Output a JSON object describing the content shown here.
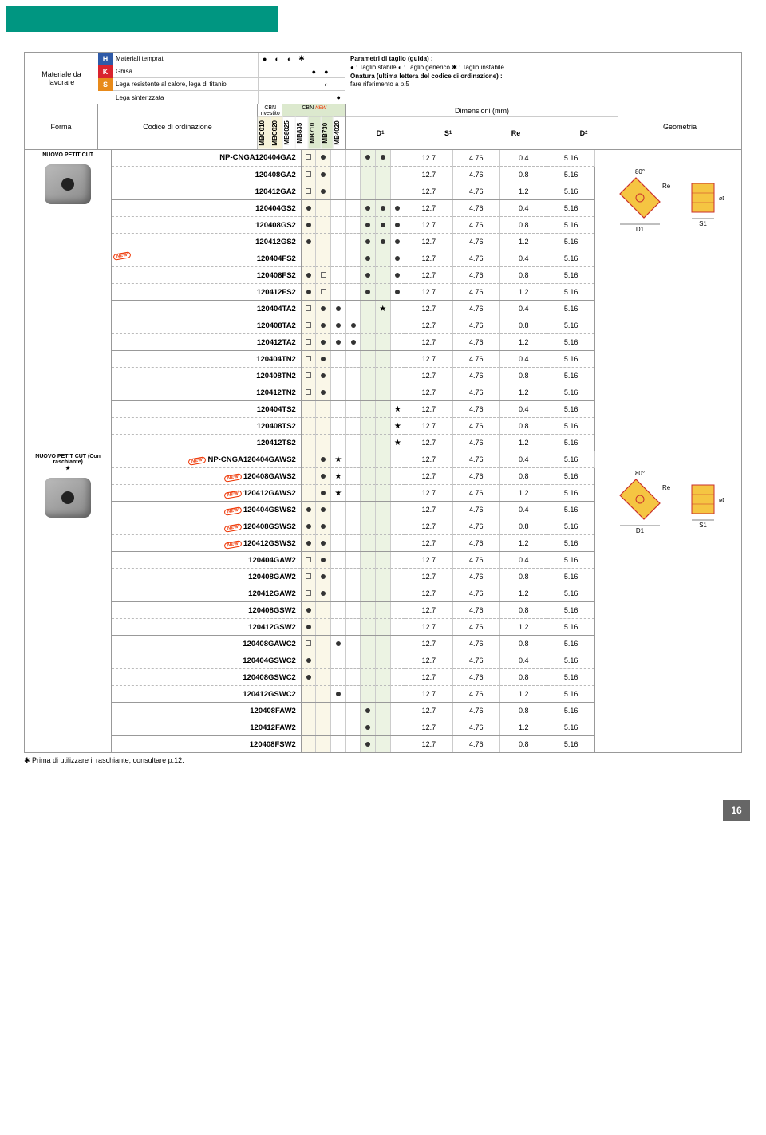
{
  "header": {
    "materiale_label": "Materiale da lavorare",
    "materials": [
      {
        "key": "H",
        "label": "Materiali temprati",
        "symbols": [
          "●",
          "◐",
          "◐",
          "✱",
          "",
          "",
          ""
        ]
      },
      {
        "key": "K",
        "label": "Ghisa",
        "symbols": [
          "",
          "",
          "",
          "",
          "●",
          "●",
          ""
        ]
      },
      {
        "key": "S",
        "label": "Lega resistente al calore, lega di titanio",
        "symbols": [
          "",
          "",
          "",
          "",
          "",
          "◐",
          ""
        ]
      },
      {
        "key": "",
        "label": "Lega sinterizzata",
        "symbols": [
          "",
          "",
          "",
          "",
          "",
          "",
          "●"
        ]
      }
    ],
    "legend_title": "Parametri di taglio (guida) :",
    "legend1": "● : Taglio stabile   ◐ : Taglio generico   ✱ : Taglio instabile",
    "legend2": "Onatura (ultima lettera del codice di ordinazione) :",
    "legend3": "fare riferimento a p.5",
    "cbn_riv": "CBN rivestito",
    "cbn": "CBN",
    "dim_hdr": "Dimensioni (mm)",
    "forma": "Forma",
    "codice": "Codice di ordinazione",
    "geometria": "Geometria",
    "grades": [
      "MBC010",
      "MBC020",
      "MB8025",
      "MB835",
      "MB710",
      "MB730",
      "MB4020"
    ],
    "grade_tint": [
      "tint1",
      "tint1",
      "",
      "",
      "tint2",
      "tint2",
      ""
    ],
    "dims": [
      "D1",
      "S1",
      "Re",
      "D2"
    ]
  },
  "sections": [
    {
      "forma": "NUOVO PETIT CUT",
      "has_image": true,
      "star": false,
      "rows": [
        {
          "code": "NP-CNGA120404GA2",
          "first": true,
          "g": [
            "□",
            "●",
            "",
            "",
            "●",
            "●",
            ""
          ],
          "d": [
            "12.7",
            "4.76",
            "0.4",
            "5.16"
          ]
        },
        {
          "code": "120408GA2",
          "g": [
            "□",
            "●",
            "",
            "",
            "",
            "",
            ""
          ],
          "d": [
            "12.7",
            "4.76",
            "0.8",
            "5.16"
          ]
        },
        {
          "code": "120412GA2",
          "solid": true,
          "g": [
            "□",
            "●",
            "",
            "",
            "",
            "",
            ""
          ],
          "d": [
            "12.7",
            "4.76",
            "1.2",
            "5.16"
          ]
        },
        {
          "code": "120404GS2",
          "g": [
            "●",
            "",
            "",
            "",
            "●",
            "●",
            "●"
          ],
          "d": [
            "12.7",
            "4.76",
            "0.4",
            "5.16"
          ]
        },
        {
          "code": "120408GS2",
          "g": [
            "●",
            "",
            "",
            "",
            "●",
            "●",
            "●"
          ],
          "d": [
            "12.7",
            "4.76",
            "0.8",
            "5.16"
          ]
        },
        {
          "code": "120412GS2",
          "solid": true,
          "g": [
            "●",
            "",
            "",
            "",
            "●",
            "●",
            "●"
          ],
          "d": [
            "12.7",
            "4.76",
            "1.2",
            "5.16"
          ]
        },
        {
          "code": "120404FS2",
          "row_new": true,
          "g": [
            "",
            "",
            "",
            "",
            "●",
            "",
            "●"
          ],
          "d": [
            "12.7",
            "4.76",
            "0.4",
            "5.16"
          ]
        },
        {
          "code": "120408FS2",
          "g": [
            "●",
            "□",
            "",
            "",
            "●",
            "",
            "●"
          ],
          "d": [
            "12.7",
            "4.76",
            "0.8",
            "5.16"
          ]
        },
        {
          "code": "120412FS2",
          "solid": true,
          "g": [
            "●",
            "□",
            "",
            "",
            "●",
            "",
            "●"
          ],
          "d": [
            "12.7",
            "4.76",
            "1.2",
            "5.16"
          ]
        },
        {
          "code": "120404TA2",
          "g": [
            "□",
            "●",
            "●",
            "",
            "",
            "★",
            ""
          ],
          "d": [
            "12.7",
            "4.76",
            "0.4",
            "5.16"
          ]
        },
        {
          "code": "120408TA2",
          "g": [
            "□",
            "●",
            "●",
            "●",
            "",
            "",
            ""
          ],
          "d": [
            "12.7",
            "4.76",
            "0.8",
            "5.16"
          ]
        },
        {
          "code": "120412TA2",
          "solid": true,
          "g": [
            "□",
            "●",
            "●",
            "●",
            "",
            "",
            ""
          ],
          "d": [
            "12.7",
            "4.76",
            "1.2",
            "5.16"
          ]
        },
        {
          "code": "120404TN2",
          "g": [
            "□",
            "●",
            "",
            "",
            "",
            "",
            ""
          ],
          "d": [
            "12.7",
            "4.76",
            "0.4",
            "5.16"
          ]
        },
        {
          "code": "120408TN2",
          "g": [
            "□",
            "●",
            "",
            "",
            "",
            "",
            ""
          ],
          "d": [
            "12.7",
            "4.76",
            "0.8",
            "5.16"
          ]
        },
        {
          "code": "120412TN2",
          "solid": true,
          "g": [
            "□",
            "●",
            "",
            "",
            "",
            "",
            ""
          ],
          "d": [
            "12.7",
            "4.76",
            "1.2",
            "5.16"
          ]
        },
        {
          "code": "120404TS2",
          "g": [
            "",
            "",
            "",
            "",
            "",
            "",
            "★"
          ],
          "d": [
            "12.7",
            "4.76",
            "0.4",
            "5.16"
          ]
        },
        {
          "code": "120408TS2",
          "g": [
            "",
            "",
            "",
            "",
            "",
            "",
            "★"
          ],
          "d": [
            "12.7",
            "4.76",
            "0.8",
            "5.16"
          ]
        },
        {
          "code": "120412TS2",
          "solid": true,
          "g": [
            "",
            "",
            "",
            "",
            "",
            "",
            "★"
          ],
          "d": [
            "12.7",
            "4.76",
            "1.2",
            "5.16"
          ]
        }
      ]
    },
    {
      "forma": "NUOVO PETIT CUT (Con raschiante)",
      "has_image": true,
      "star": true,
      "rows": [
        {
          "code": "NP-CNGA120404GAWS2",
          "first": true,
          "new": true,
          "g": [
            "",
            "●",
            "★",
            "",
            "",
            "",
            ""
          ],
          "d": [
            "12.7",
            "4.76",
            "0.4",
            "5.16"
          ]
        },
        {
          "code": "120408GAWS2",
          "new": true,
          "g": [
            "",
            "●",
            "★",
            "",
            "",
            "",
            ""
          ],
          "d": [
            "12.7",
            "4.76",
            "0.8",
            "5.16"
          ]
        },
        {
          "code": "120412GAWS2",
          "solid": true,
          "new": true,
          "g": [
            "",
            "●",
            "★",
            "",
            "",
            "",
            ""
          ],
          "d": [
            "12.7",
            "4.76",
            "1.2",
            "5.16"
          ]
        },
        {
          "code": "120404GSWS2",
          "new": true,
          "g": [
            "●",
            "●",
            "",
            "",
            "",
            "",
            ""
          ],
          "d": [
            "12.7",
            "4.76",
            "0.4",
            "5.16"
          ]
        },
        {
          "code": "120408GSWS2",
          "new": true,
          "g": [
            "●",
            "●",
            "",
            "",
            "",
            "",
            ""
          ],
          "d": [
            "12.7",
            "4.76",
            "0.8",
            "5.16"
          ]
        },
        {
          "code": "120412GSWS2",
          "solid": true,
          "new": true,
          "g": [
            "●",
            "●",
            "",
            "",
            "",
            "",
            ""
          ],
          "d": [
            "12.7",
            "4.76",
            "1.2",
            "5.16"
          ]
        },
        {
          "code": "120404GAW2",
          "g": [
            "□",
            "●",
            "",
            "",
            "",
            "",
            ""
          ],
          "d": [
            "12.7",
            "4.76",
            "0.4",
            "5.16"
          ]
        },
        {
          "code": "120408GAW2",
          "g": [
            "□",
            "●",
            "",
            "",
            "",
            "",
            ""
          ],
          "d": [
            "12.7",
            "4.76",
            "0.8",
            "5.16"
          ]
        },
        {
          "code": "120412GAW2",
          "solid": true,
          "g": [
            "□",
            "●",
            "",
            "",
            "",
            "",
            ""
          ],
          "d": [
            "12.7",
            "4.76",
            "1.2",
            "5.16"
          ]
        },
        {
          "code": "120408GSW2",
          "g": [
            "●",
            "",
            "",
            "",
            "",
            "",
            ""
          ],
          "d": [
            "12.7",
            "4.76",
            "0.8",
            "5.16"
          ]
        },
        {
          "code": "120412GSW2",
          "solid": true,
          "g": [
            "●",
            "",
            "",
            "",
            "",
            "",
            ""
          ],
          "d": [
            "12.7",
            "4.76",
            "1.2",
            "5.16"
          ]
        },
        {
          "code": "120408GAWC2",
          "solid": true,
          "g": [
            "□",
            "",
            "●",
            "",
            "",
            "",
            ""
          ],
          "d": [
            "12.7",
            "4.76",
            "0.8",
            "5.16"
          ]
        },
        {
          "code": "120404GSWC2",
          "g": [
            "●",
            "",
            "",
            "",
            "",
            "",
            ""
          ],
          "d": [
            "12.7",
            "4.76",
            "0.4",
            "5.16"
          ]
        },
        {
          "code": "120408GSWC2",
          "g": [
            "●",
            "",
            "",
            "",
            "",
            "",
            ""
          ],
          "d": [
            "12.7",
            "4.76",
            "0.8",
            "5.16"
          ]
        },
        {
          "code": "120412GSWC2",
          "solid": true,
          "g": [
            "",
            "",
            "●",
            "",
            "",
            "",
            ""
          ],
          "d": [
            "12.7",
            "4.76",
            "1.2",
            "5.16"
          ]
        },
        {
          "code": "120408FAW2",
          "g": [
            "",
            "",
            "",
            "",
            "●",
            "",
            ""
          ],
          "d": [
            "12.7",
            "4.76",
            "0.8",
            "5.16"
          ]
        },
        {
          "code": "120412FAW2",
          "solid": true,
          "g": [
            "",
            "",
            "",
            "",
            "●",
            "",
            ""
          ],
          "d": [
            "12.7",
            "4.76",
            "1.2",
            "5.16"
          ]
        },
        {
          "code": "120408FSW2",
          "solid": true,
          "g": [
            "",
            "",
            "",
            "",
            "●",
            "",
            ""
          ],
          "d": [
            "12.7",
            "4.76",
            "0.8",
            "5.16"
          ]
        }
      ]
    }
  ],
  "footnote": "✱ Prima di utilizzare il raschiante, consultare p.12.",
  "geometry": {
    "angle": "80°",
    "re": "Re",
    "d1": "D1",
    "s1": "S1",
    "d2": "øD2",
    "fill": "#f5c542",
    "stroke": "#c9302c"
  },
  "page_number": "16"
}
